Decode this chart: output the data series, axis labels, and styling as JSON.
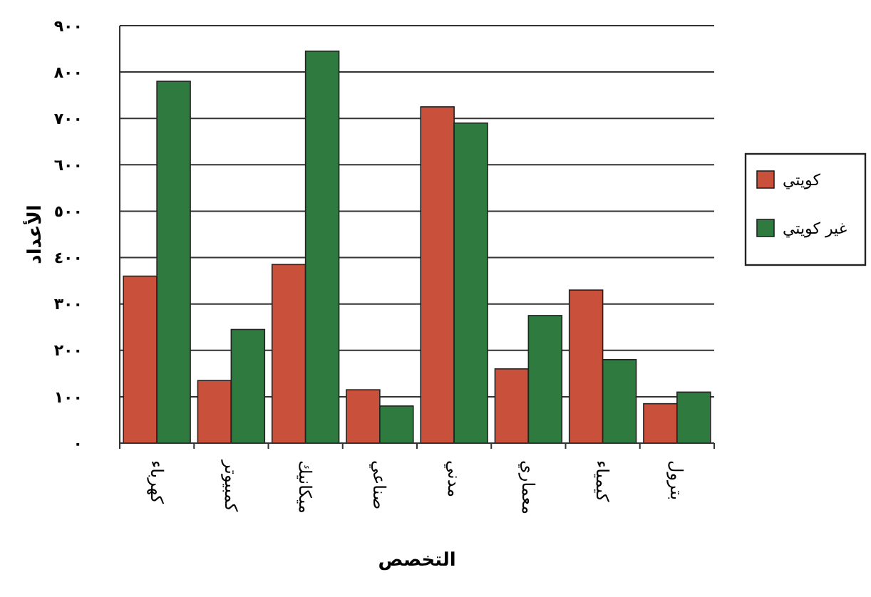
{
  "chart_data": {
    "type": "bar",
    "xlabel": "التخصص",
    "ylabel": "الأعداد",
    "categories": [
      "كهرباء",
      "كمبيوتر",
      "ميكانيك",
      "صناعي",
      "مدني",
      "معماري",
      "كيمياء",
      "بترول"
    ],
    "series": [
      {
        "name": "كويتي",
        "color": "#c9503a",
        "values": [
          360,
          135,
          385,
          115,
          725,
          160,
          330,
          85
        ]
      },
      {
        "name": "غير كويتي",
        "color": "#2f7a3e",
        "values": [
          780,
          245,
          845,
          80,
          690,
          275,
          180,
          110
        ]
      }
    ],
    "ylim": [
      0,
      900
    ],
    "yticks": [
      {
        "value": 0,
        "label": "٠"
      },
      {
        "value": 100,
        "label": "١٠٠"
      },
      {
        "value": 200,
        "label": "٢٠٠"
      },
      {
        "value": 300,
        "label": "٣٠٠"
      },
      {
        "value": 400,
        "label": "٤٠٠"
      },
      {
        "value": 500,
        "label": "٥٠٠"
      },
      {
        "value": 600,
        "label": "٦٠٠"
      },
      {
        "value": 700,
        "label": "٧٠٠"
      },
      {
        "value": 800,
        "label": "٨٠٠"
      },
      {
        "value": 900,
        "label": "٩٠٠"
      }
    ],
    "grid": "y",
    "legend": "right"
  }
}
